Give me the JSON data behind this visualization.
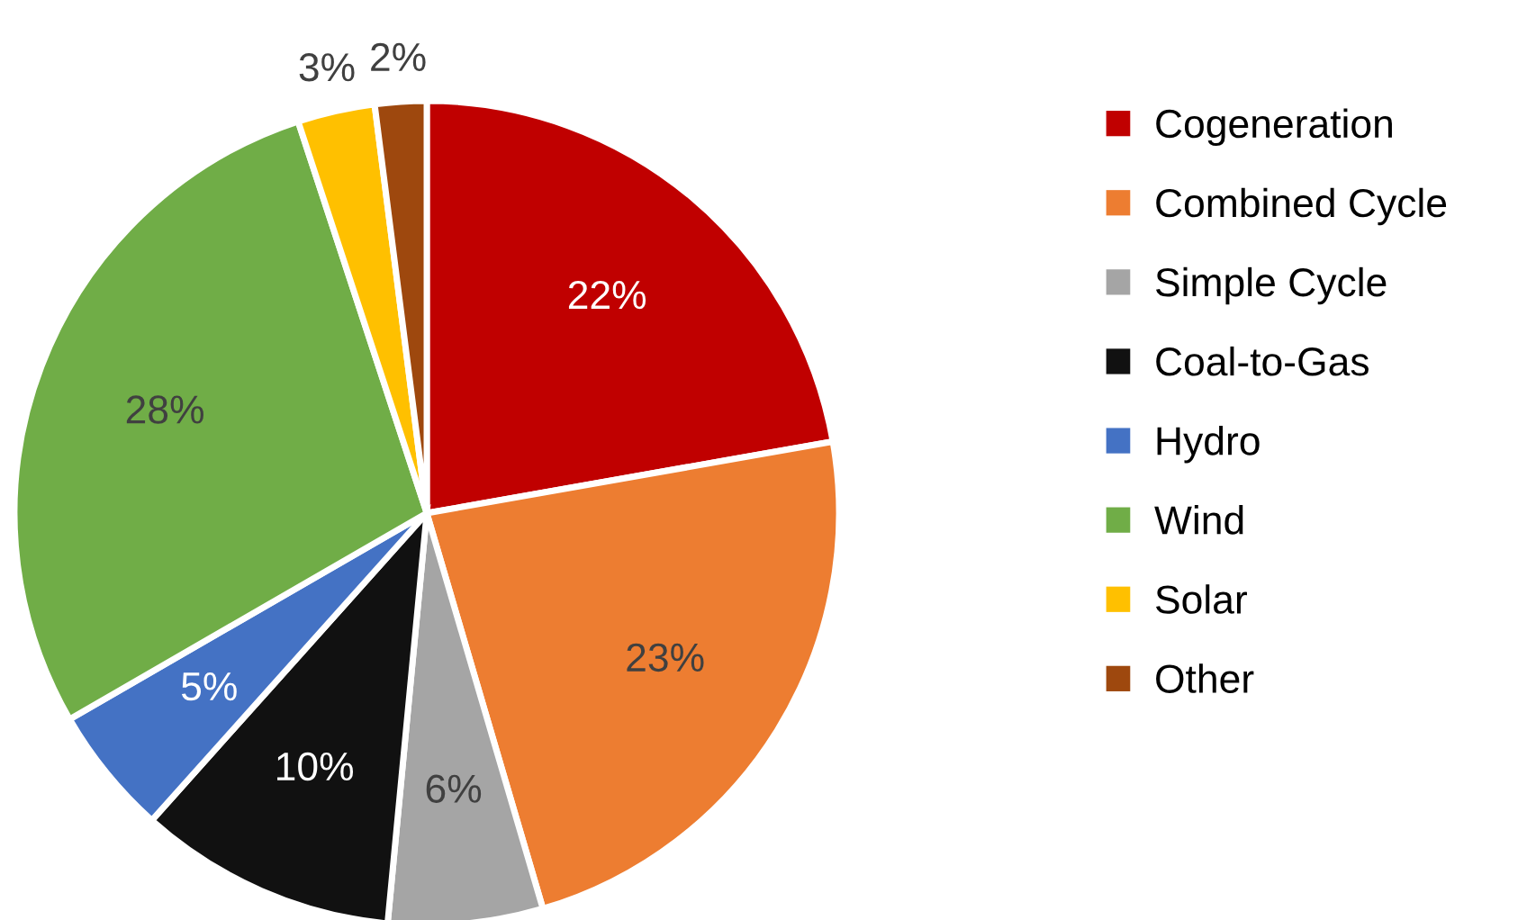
{
  "chart_data": {
    "type": "pie",
    "categories": [
      "Cogeneration",
      "Combined Cycle",
      "Simple Cycle",
      "Coal-to-Gas",
      "Hydro",
      "Wind",
      "Solar",
      "Other"
    ],
    "values": [
      22,
      23,
      6,
      10,
      5,
      28,
      3,
      2
    ],
    "colors": [
      "#c00000",
      "#ed7d31",
      "#a5a5a5",
      "#111111",
      "#4472c4",
      "#70ad47",
      "#ffc000",
      "#9e480e"
    ],
    "value_labels": [
      "22%",
      "23%",
      "6%",
      "10%",
      "5%",
      "28%",
      "3%",
      "2%"
    ],
    "legend": "right"
  }
}
